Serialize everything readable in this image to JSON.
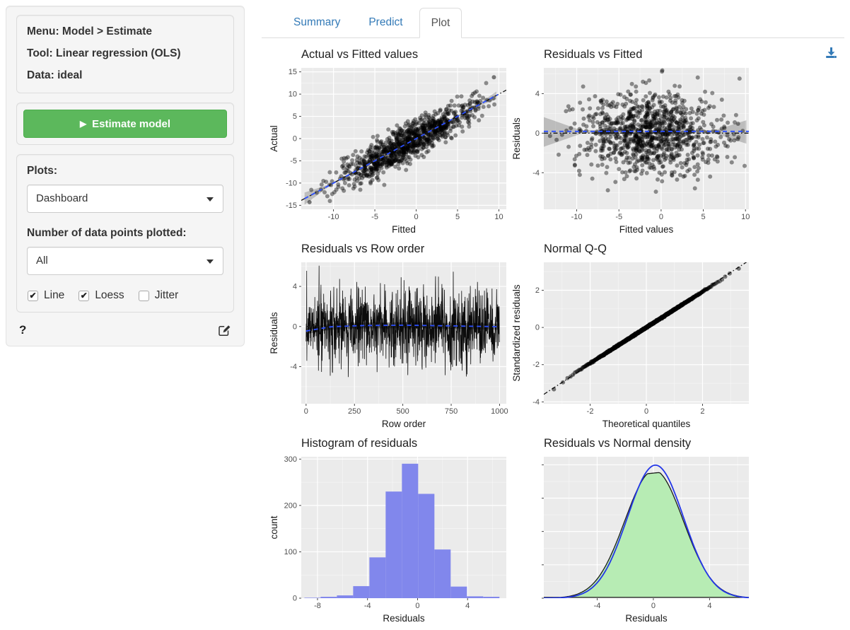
{
  "sidebar": {
    "info": {
      "menu": "Menu: Model > Estimate",
      "tool": "Tool: Linear regression (OLS)",
      "data": "Data: ideal"
    },
    "estimate_button_label": "Estimate model",
    "plots_label": "Plots:",
    "plots_value": "Dashboard",
    "npoints_label": "Number of data points plotted:",
    "npoints_value": "All",
    "checkboxes": [
      {
        "label": "Line",
        "checked": true
      },
      {
        "label": "Loess",
        "checked": true
      },
      {
        "label": "Jitter",
        "checked": false
      }
    ],
    "help_label": "?"
  },
  "tabs": [
    {
      "label": "Summary",
      "active": false
    },
    {
      "label": "Predict",
      "active": false
    },
    {
      "label": "Plot",
      "active": true
    }
  ],
  "icons": {
    "play": "▶",
    "check": "✔"
  },
  "colors": {
    "accent_green": "#5cb85c",
    "accent_green_border": "#4cae4c",
    "link_blue": "#337ab7",
    "panel_bg": "#ebebeb",
    "hist_fill": "#8187ec",
    "density_fill": "#b7ecb4",
    "normal_curve_blue": "#2336e8",
    "loess_blue": "#2b4fff",
    "point_black": "#000000",
    "ref_line": "#141414"
  },
  "chart_data": [
    {
      "type": "scatter",
      "title": "Actual vs Fitted values",
      "xlabel": "Fitted",
      "ylabel": "Actual",
      "xlim": [
        -13.9,
        10.9
      ],
      "ylim": [
        -15.9,
        15.9
      ],
      "xticks": [
        -10,
        -5,
        0,
        5,
        10
      ],
      "yticks": [
        -15,
        -10,
        -5,
        0,
        5,
        10,
        15
      ],
      "n_points": 1000,
      "gen": {
        "x_mean": -1,
        "x_sd": 4.3,
        "x_min": -13.5,
        "x_max": 9.9,
        "slope": 1,
        "intercept": 0,
        "noise_sd": 2
      },
      "outliers": [
        [
          9.4,
          13.8
        ],
        [
          -12.9,
          -14.3
        ]
      ],
      "lines": {
        "identity": "diagonal",
        "loess": "diagonal"
      },
      "ribbon": "diagonal-ends",
      "grid": true,
      "legend": false
    },
    {
      "type": "scatter",
      "title": "Residuals vs Fitted",
      "xlabel": "Fitted values",
      "ylabel": "Residuals",
      "xlim": [
        -13.9,
        10.4
      ],
      "ylim": [
        -7.7,
        6.6
      ],
      "xticks": [
        -10,
        -5,
        0,
        5,
        10
      ],
      "yticks": [
        -4,
        0,
        4
      ],
      "n_points": 1000,
      "gen": {
        "x_mean": -1,
        "x_sd": 4.3,
        "x_min": -13.5,
        "x_max": 9.9,
        "slope": 0,
        "intercept": 0,
        "noise_sd": 2
      },
      "lines": {
        "identity": "horizontal",
        "loess": "horizontal"
      },
      "ribbon": "horizontal-hourglass",
      "grid": true,
      "legend": false
    },
    {
      "type": "line",
      "title": "Residuals vs Row order",
      "xlabel": "Row order",
      "ylabel": "Residuals",
      "xlim": [
        -25,
        1035
      ],
      "ylim": [
        -7.7,
        6.4
      ],
      "xticks": [
        0,
        250,
        500,
        750,
        1000
      ],
      "yticks": [
        -4,
        0,
        4
      ],
      "n_points": 1000,
      "gen": {
        "noise_sd": 2
      },
      "loess_points": [
        [
          0,
          -0.45
        ],
        [
          130,
          -0.02
        ],
        [
          300,
          0.1
        ],
        [
          520,
          0.13
        ],
        [
          750,
          0.06
        ],
        [
          1000,
          -0.02
        ]
      ],
      "grid": true,
      "legend": false
    },
    {
      "type": "qq",
      "title": "Normal Q-Q",
      "xlabel": "Theoretical quantiles",
      "ylabel": "Standardized residuals",
      "xlim": [
        -3.65,
        3.65
      ],
      "ylim": [
        -4.1,
        3.5
      ],
      "xticks": [
        -2,
        0,
        2
      ],
      "yticks": [
        -4,
        -2,
        0,
        2
      ],
      "n_points": 1000,
      "grid": true,
      "legend": false
    },
    {
      "type": "histogram",
      "title": "Histogram of residuals",
      "xlabel": "Residuals",
      "ylabel": "count",
      "xlim": [
        -9.3,
        7.1
      ],
      "ylim": [
        0,
        305
      ],
      "xticks": [
        -8,
        -4,
        0,
        4
      ],
      "yticks": [
        0,
        100,
        200,
        300
      ],
      "bins": {
        "start": -9.05,
        "width": 1.3,
        "counts": [
          1,
          3,
          6,
          26,
          88,
          230,
          290,
          225,
          105,
          25,
          4,
          3
        ]
      },
      "grid": true,
      "legend": false
    },
    {
      "type": "density",
      "title": "Residuals vs Normal density",
      "xlabel": "Residuals",
      "ylabel": "",
      "xlim": [
        -7.8,
        6.8
      ],
      "ylim": [
        0,
        0.212
      ],
      "xticks": [
        -4,
        0,
        4
      ],
      "yticks": [
        0,
        0.05,
        0.1,
        0.15,
        0.2
      ],
      "hide_ytick_labels": true,
      "residual_density": {
        "mean": 0.05,
        "sd": 2.08,
        "peak_cap": 0.1875,
        "cap_tilt": 0.002
      },
      "normal_density": {
        "mean": 0.15,
        "sd": 2.0
      },
      "grid": true,
      "legend": false
    }
  ]
}
